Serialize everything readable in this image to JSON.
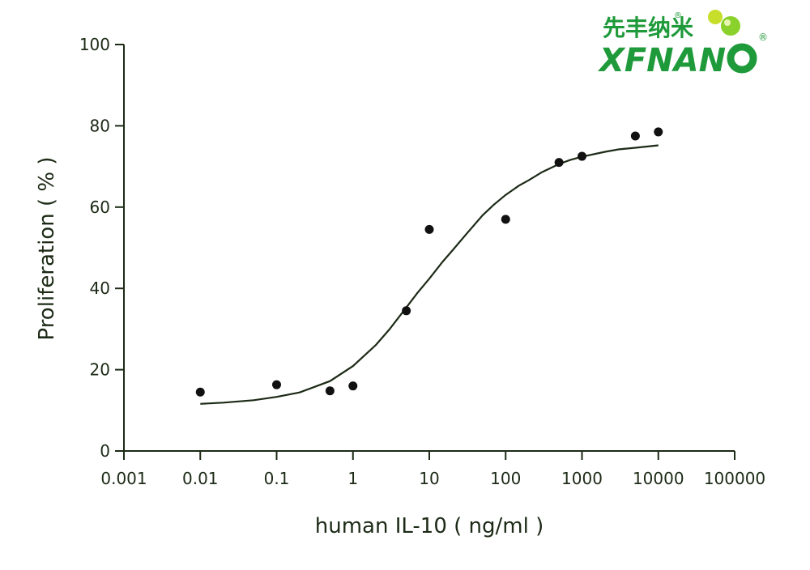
{
  "logo": {
    "cn_text": "先丰纳米",
    "en_text": "XFNAN",
    "registered_mark": "®",
    "brand_green": "#1f9a3a",
    "accent_yellow": "#c7de2a",
    "accent_bright": "#8bd12c"
  },
  "chart_data": {
    "type": "scatter",
    "xlabel": "human IL-10 ( ng/ml )",
    "ylabel": "Proliferation ( % )",
    "xscale": "log",
    "xlim": [
      0.001,
      100000
    ],
    "ylim": [
      0,
      100
    ],
    "xticks": [
      0.001,
      0.01,
      0.1,
      1,
      10,
      100,
      1000,
      10000,
      100000
    ],
    "xtick_labels": [
      "0.001",
      "0.01",
      "0.1",
      "1",
      "10",
      "100",
      "1000",
      "10000",
      "100000"
    ],
    "yticks": [
      0,
      20,
      40,
      60,
      80,
      100
    ],
    "ytick_labels": [
      "0",
      "20",
      "40",
      "60",
      "80",
      "100"
    ],
    "grid": false,
    "series": [
      {
        "x": [
          0.01,
          0.1,
          0.5,
          1,
          5,
          10,
          100,
          500,
          1000,
          5000,
          10000
        ],
        "y": [
          14.5,
          16.3,
          14.8,
          16.0,
          34.5,
          54.5,
          57.0,
          71.0,
          72.5,
          77.5,
          78.5
        ]
      }
    ],
    "fit_curve": {
      "x": [
        0.01,
        0.02,
        0.05,
        0.1,
        0.2,
        0.5,
        1,
        2,
        3,
        5,
        7,
        10,
        15,
        20,
        30,
        50,
        70,
        100,
        150,
        200,
        300,
        500,
        700,
        1000,
        2000,
        3000,
        5000,
        10000
      ],
      "y": [
        11.6,
        11.9,
        12.5,
        13.3,
        14.4,
        17.2,
        20.9,
        26.1,
        29.9,
        35.3,
        38.9,
        42.4,
        46.6,
        49.3,
        53.2,
        58.0,
        60.6,
        63.0,
        65.3,
        66.6,
        68.6,
        70.6,
        71.6,
        72.4,
        73.6,
        74.2,
        74.6,
        75.2
      ]
    }
  }
}
